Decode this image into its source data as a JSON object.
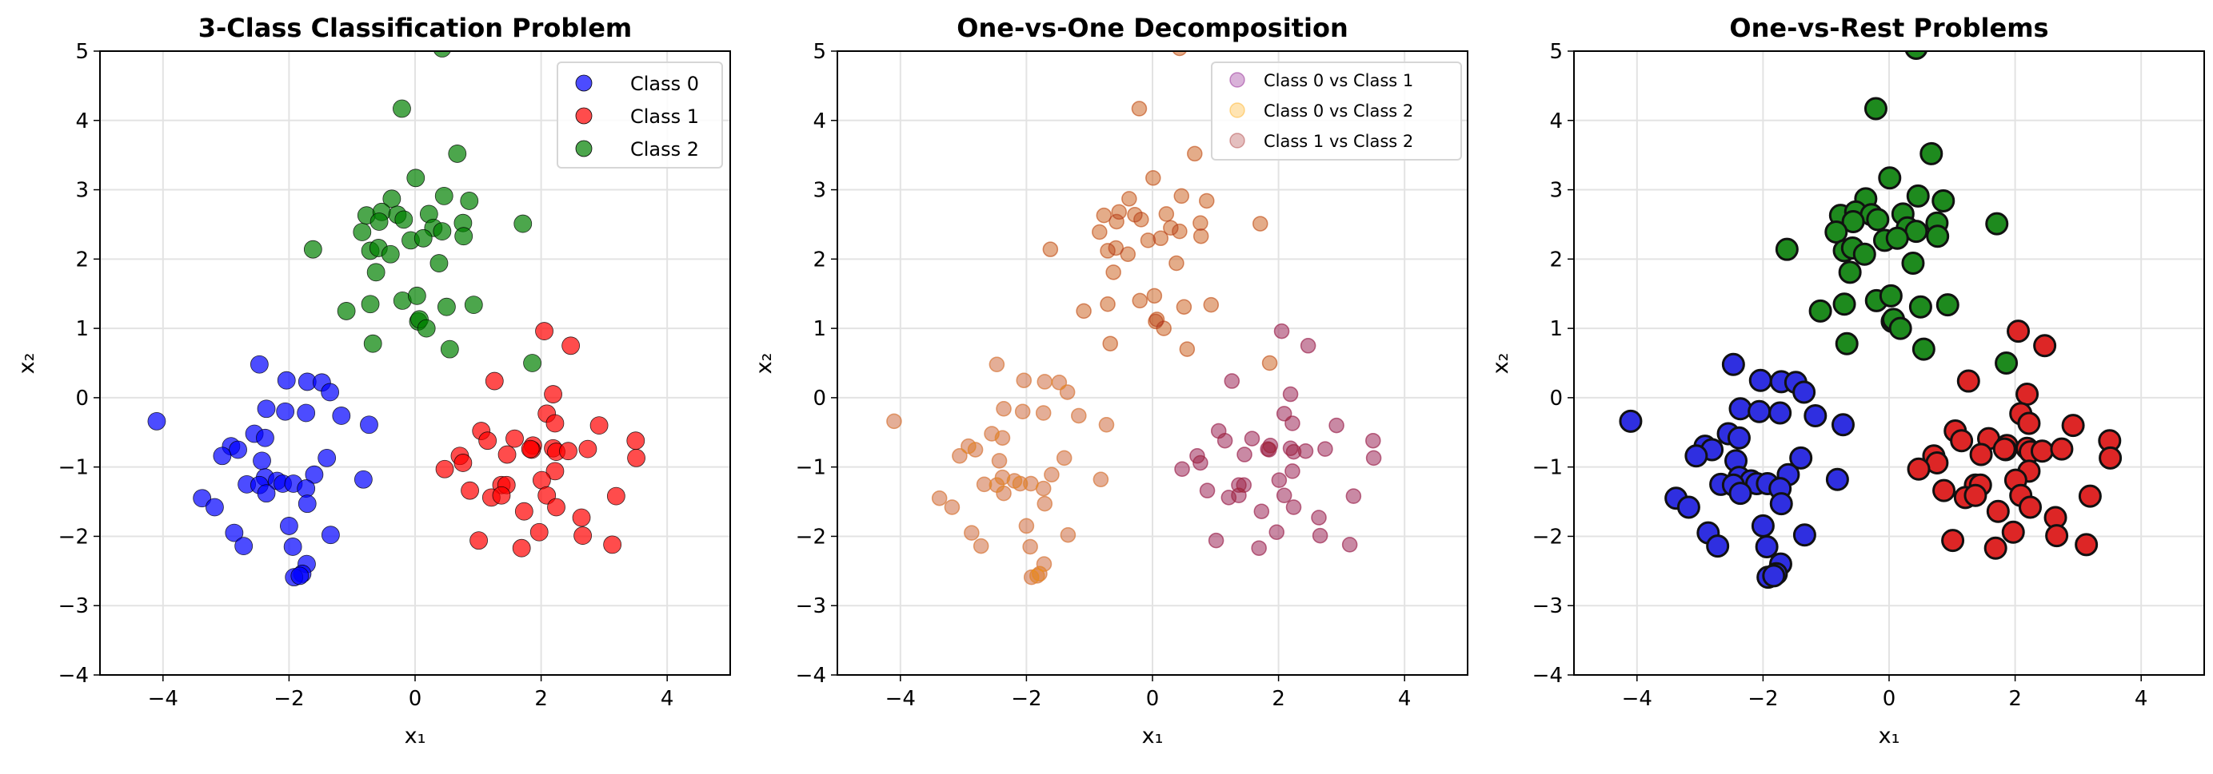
{
  "chart_data": [
    {
      "type": "scatter",
      "title": "3-Class Classification Problem",
      "xlabel": "x₁",
      "ylabel": "x₂",
      "xlim": [
        -5,
        5
      ],
      "ylim": [
        -4,
        5
      ],
      "xticks": [
        -4,
        -2,
        0,
        2,
        4
      ],
      "yticks": [
        -4,
        -3,
        -2,
        -1,
        0,
        1,
        2,
        3,
        4,
        5
      ],
      "grid": true,
      "legend_position": "top-right",
      "series": [
        {
          "name": "Class 0",
          "color": "#0000ff"
        },
        {
          "name": "Class 1",
          "color": "#ff0000"
        },
        {
          "name": "Class 2",
          "color": "#008000"
        }
      ]
    },
    {
      "type": "scatter",
      "title": "One-vs-One Decomposition",
      "xlabel": "x₁",
      "ylabel": "x₂",
      "xlim": [
        -5,
        5
      ],
      "ylim": [
        -4,
        5
      ],
      "xticks": [
        -4,
        -2,
        0,
        2,
        4
      ],
      "yticks": [
        -4,
        -3,
        -2,
        -1,
        0,
        1,
        2,
        3,
        4,
        5
      ],
      "grid": true,
      "legend_position": "top-right",
      "series": [
        {
          "name": "Class 0 vs Class 1",
          "color": "#800080",
          "classes": [
            0,
            1
          ]
        },
        {
          "name": "Class 0 vs Class 2",
          "color": "#ffa500",
          "classes": [
            0,
            2
          ]
        },
        {
          "name": "Class 1 vs Class 2",
          "color": "#a52a2a",
          "classes": [
            1,
            2
          ]
        }
      ]
    },
    {
      "type": "scatter",
      "title": "One-vs-Rest Problems",
      "xlabel": "x₁",
      "ylabel": "x₂",
      "xlim": [
        -5,
        5
      ],
      "ylim": [
        -4,
        5
      ],
      "xticks": [
        -4,
        -2,
        0,
        2,
        4
      ],
      "yticks": [
        -4,
        -3,
        -2,
        -1,
        0,
        1,
        2,
        3,
        4,
        5
      ],
      "grid": true,
      "series": [
        {
          "name": "Class 0",
          "color": "#2f2fe0"
        },
        {
          "name": "Class 1",
          "color": "#dd2626"
        },
        {
          "name": "Class 2",
          "color": "#1e8a1e"
        }
      ]
    }
  ],
  "points": {
    "class0": [
      [
        -4.1,
        -0.34
      ],
      [
        -2.47,
        0.48
      ],
      [
        -2.04,
        0.25
      ],
      [
        -1.71,
        0.23
      ],
      [
        -1.48,
        0.22
      ],
      [
        -1.35,
        0.08
      ],
      [
        -2.36,
        -0.16
      ],
      [
        -2.06,
        -0.2
      ],
      [
        -1.73,
        -0.22
      ],
      [
        -1.17,
        -0.26
      ],
      [
        -0.73,
        -0.39
      ],
      [
        -2.55,
        -0.52
      ],
      [
        -2.38,
        -0.58
      ],
      [
        -2.92,
        -0.7
      ],
      [
        -2.81,
        -0.75
      ],
      [
        -3.06,
        -0.84
      ],
      [
        -2.43,
        -0.91
      ],
      [
        -1.4,
        -0.87
      ],
      [
        -1.6,
        -1.11
      ],
      [
        -2.38,
        -1.15
      ],
      [
        -2.19,
        -1.2
      ],
      [
        -2.1,
        -1.24
      ],
      [
        -1.93,
        -1.24
      ],
      [
        -2.67,
        -1.25
      ],
      [
        -2.47,
        -1.26
      ],
      [
        -1.73,
        -1.31
      ],
      [
        -2.36,
        -1.38
      ],
      [
        -0.82,
        -1.18
      ],
      [
        -3.38,
        -1.45
      ],
      [
        -3.18,
        -1.58
      ],
      [
        -1.71,
        -1.53
      ],
      [
        -2.0,
        -1.85
      ],
      [
        -2.87,
        -1.95
      ],
      [
        -2.72,
        -2.14
      ],
      [
        -1.34,
        -1.98
      ],
      [
        -1.94,
        -2.15
      ],
      [
        -1.72,
        -2.4
      ],
      [
        -1.79,
        -2.54
      ],
      [
        -1.92,
        -2.59
      ],
      [
        -1.83,
        -2.57
      ]
    ],
    "class1": [
      [
        2.05,
        0.96
      ],
      [
        2.47,
        0.75
      ],
      [
        1.26,
        0.24
      ],
      [
        2.19,
        0.05
      ],
      [
        2.09,
        -0.23
      ],
      [
        2.22,
        -0.37
      ],
      [
        2.92,
        -0.4
      ],
      [
        1.05,
        -0.48
      ],
      [
        1.15,
        -0.62
      ],
      [
        1.58,
        -0.59
      ],
      [
        1.87,
        -0.69
      ],
      [
        1.85,
        -0.75
      ],
      [
        2.19,
        -0.73
      ],
      [
        2.24,
        -0.78
      ],
      [
        2.43,
        -0.77
      ],
      [
        2.74,
        -0.74
      ],
      [
        3.5,
        -0.62
      ],
      [
        3.51,
        -0.87
      ],
      [
        1.46,
        -0.82
      ],
      [
        0.71,
        -0.84
      ],
      [
        0.76,
        -0.94
      ],
      [
        0.47,
        -1.03
      ],
      [
        2.22,
        -1.06
      ],
      [
        2.01,
        -1.19
      ],
      [
        1.37,
        -1.26
      ],
      [
        1.45,
        -1.26
      ],
      [
        0.87,
        -1.34
      ],
      [
        1.21,
        -1.44
      ],
      [
        1.37,
        -1.41
      ],
      [
        2.09,
        -1.41
      ],
      [
        2.24,
        -1.58
      ],
      [
        3.19,
        -1.42
      ],
      [
        1.73,
        -1.64
      ],
      [
        2.64,
        -1.73
      ],
      [
        1.97,
        -1.94
      ],
      [
        2.66,
        -1.99
      ],
      [
        1.01,
        -2.06
      ],
      [
        1.69,
        -2.17
      ],
      [
        3.13,
        -2.12
      ],
      [
        1.83,
        -0.74
      ]
    ],
    "class2": [
      [
        0.43,
        5.04
      ],
      [
        -0.21,
        4.17
      ],
      [
        0.67,
        3.52
      ],
      [
        0.01,
        3.17
      ],
      [
        -0.37,
        2.87
      ],
      [
        0.46,
        2.91
      ],
      [
        0.86,
        2.84
      ],
      [
        -0.77,
        2.63
      ],
      [
        -0.53,
        2.68
      ],
      [
        -0.28,
        2.64
      ],
      [
        -0.18,
        2.57
      ],
      [
        0.22,
        2.65
      ],
      [
        -0.57,
        2.54
      ],
      [
        0.76,
        2.52
      ],
      [
        1.71,
        2.51
      ],
      [
        0.29,
        2.45
      ],
      [
        0.43,
        2.4
      ],
      [
        -0.84,
        2.39
      ],
      [
        -0.07,
        2.27
      ],
      [
        0.13,
        2.3
      ],
      [
        0.77,
        2.33
      ],
      [
        -1.62,
        2.14
      ],
      [
        -0.71,
        2.12
      ],
      [
        -0.58,
        2.16
      ],
      [
        -0.39,
        2.07
      ],
      [
        0.38,
        1.94
      ],
      [
        -0.62,
        1.81
      ],
      [
        -1.09,
        1.25
      ],
      [
        -0.71,
        1.35
      ],
      [
        -0.2,
        1.4
      ],
      [
        0.03,
        1.47
      ],
      [
        0.5,
        1.31
      ],
      [
        0.93,
        1.34
      ],
      [
        0.05,
        1.1
      ],
      [
        0.07,
        1.13
      ],
      [
        0.18,
        1.0
      ],
      [
        -0.67,
        0.78
      ],
      [
        0.55,
        0.7
      ],
      [
        1.86,
        0.5
      ]
    ]
  }
}
